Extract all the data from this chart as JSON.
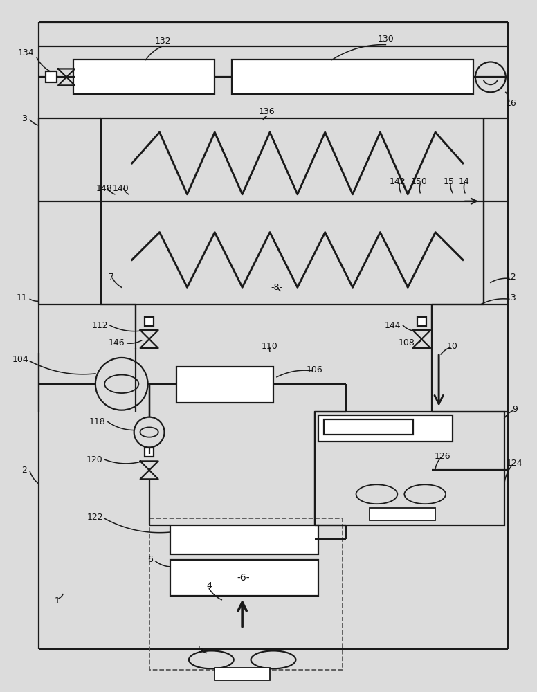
{
  "bg_color": "#dcdcdc",
  "line_color": "#1a1a1a",
  "lw": 1.6,
  "fig_w": 7.76,
  "fig_h": 10.0
}
